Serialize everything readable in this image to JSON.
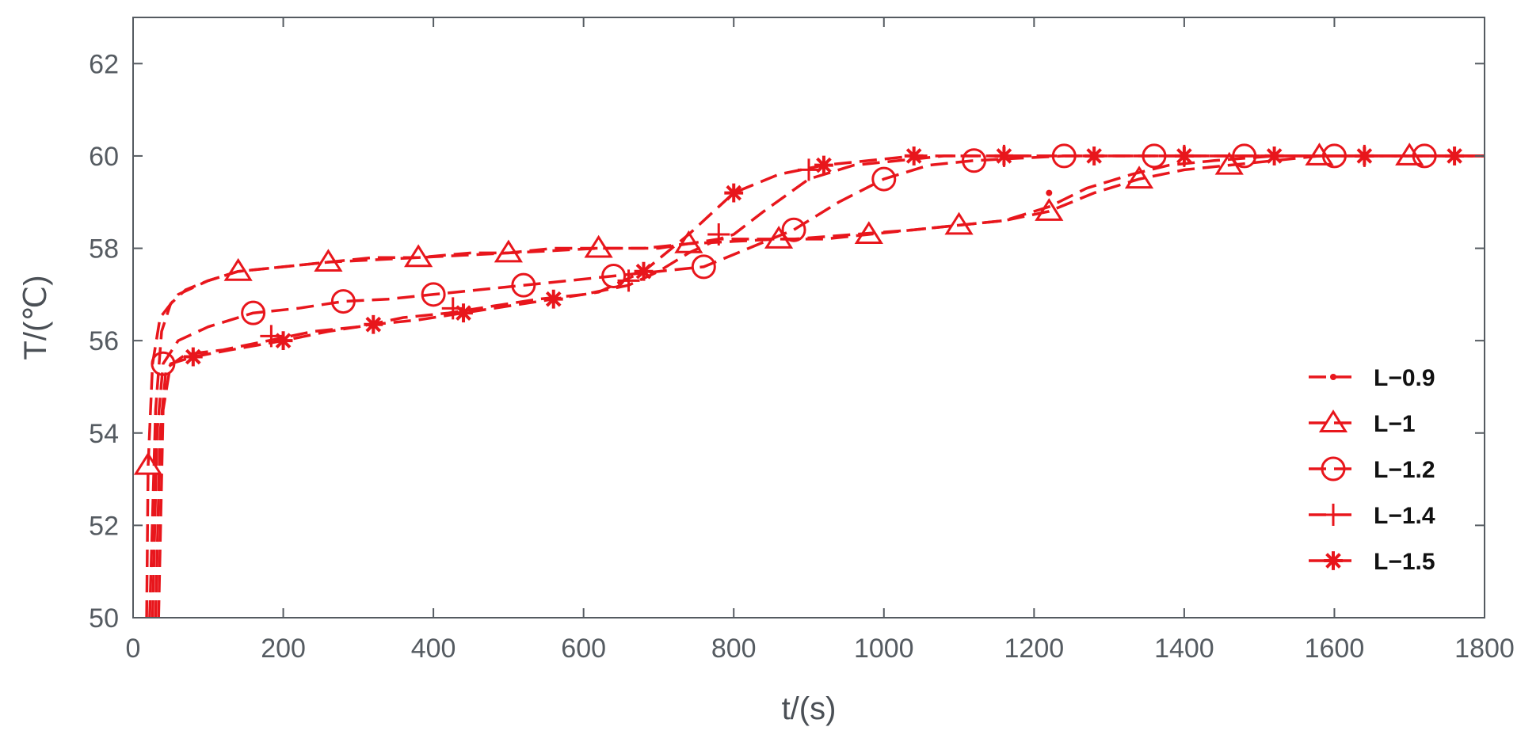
{
  "chart_data": {
    "type": "line",
    "title": "",
    "xlabel": "t/(s)",
    "ylabel": "T/(℃)",
    "xlim": [
      0,
      1800
    ],
    "ylim": [
      50,
      63
    ],
    "xticks": [
      0,
      200,
      400,
      600,
      800,
      1000,
      1200,
      1400,
      1600,
      1800
    ],
    "yticks": [
      50,
      52,
      54,
      56,
      58,
      60,
      62
    ],
    "grid": false,
    "legend_position": "right",
    "line_color": "#e8161c",
    "line_style": "dashed",
    "series": [
      {
        "name": "L−0.9",
        "marker": "dot",
        "points": [
          [
            22,
            50
          ],
          [
            30,
            54.5
          ],
          [
            38,
            56.2
          ],
          [
            50,
            56.8
          ],
          [
            70,
            57.1
          ],
          [
            100,
            57.3
          ],
          [
            140,
            57.5
          ],
          [
            200,
            57.6
          ],
          [
            260,
            57.7
          ],
          [
            320,
            57.8
          ],
          [
            380,
            57.8
          ],
          [
            450,
            57.9
          ],
          [
            500,
            57.9
          ],
          [
            560,
            58
          ],
          [
            620,
            58
          ],
          [
            700,
            58
          ],
          [
            740,
            58.1
          ],
          [
            780,
            58.2
          ],
          [
            820,
            58.2
          ],
          [
            880,
            58.2
          ],
          [
            960,
            58.3
          ],
          [
            1040,
            58.4
          ],
          [
            1100,
            58.5
          ],
          [
            1160,
            58.6
          ],
          [
            1220,
            58.9
          ],
          [
            1270,
            59.3
          ],
          [
            1330,
            59.6
          ],
          [
            1380,
            59.8
          ],
          [
            1440,
            59.9
          ],
          [
            1520,
            60
          ],
          [
            1600,
            60
          ],
          [
            1680,
            60
          ],
          [
            1760,
            60
          ],
          [
            1800,
            60
          ]
        ],
        "marker_points": [
          [
            1220,
            59.2
          ]
        ]
      },
      {
        "name": "L−1",
        "marker": "triangle",
        "points": [
          [
            18,
            50
          ],
          [
            20,
            53.3
          ],
          [
            26,
            55.5
          ],
          [
            36,
            56.5
          ],
          [
            60,
            57
          ],
          [
            100,
            57.3
          ],
          [
            140,
            57.5
          ],
          [
            200,
            57.6
          ],
          [
            260,
            57.7
          ],
          [
            320,
            57.75
          ],
          [
            380,
            57.8
          ],
          [
            440,
            57.85
          ],
          [
            500,
            57.9
          ],
          [
            560,
            57.95
          ],
          [
            620,
            58
          ],
          [
            680,
            58
          ],
          [
            740,
            58.1
          ],
          [
            800,
            58.15
          ],
          [
            860,
            58.2
          ],
          [
            920,
            58.2
          ],
          [
            980,
            58.3
          ],
          [
            1040,
            58.4
          ],
          [
            1100,
            58.5
          ],
          [
            1160,
            58.6
          ],
          [
            1220,
            58.8
          ],
          [
            1280,
            59.2
          ],
          [
            1340,
            59.5
          ],
          [
            1400,
            59.7
          ],
          [
            1460,
            59.8
          ],
          [
            1520,
            59.9
          ],
          [
            1580,
            60
          ],
          [
            1640,
            60
          ],
          [
            1700,
            60
          ],
          [
            1760,
            60
          ],
          [
            1800,
            60
          ]
        ],
        "marker_points": [
          [
            20,
            53.3
          ],
          [
            140,
            57.5
          ],
          [
            260,
            57.7
          ],
          [
            380,
            57.8
          ],
          [
            500,
            57.9
          ],
          [
            620,
            58
          ],
          [
            740,
            58.1
          ],
          [
            860,
            58.2
          ],
          [
            980,
            58.3
          ],
          [
            1100,
            58.5
          ],
          [
            1220,
            58.8
          ],
          [
            1340,
            59.5
          ],
          [
            1460,
            59.8
          ],
          [
            1580,
            60
          ],
          [
            1700,
            60
          ]
        ]
      },
      {
        "name": "L−1.2",
        "marker": "circle",
        "points": [
          [
            26,
            50
          ],
          [
            32,
            54
          ],
          [
            40,
            55.5
          ],
          [
            60,
            56
          ],
          [
            100,
            56.3
          ],
          [
            160,
            56.6
          ],
          [
            220,
            56.7
          ],
          [
            280,
            56.85
          ],
          [
            340,
            56.9
          ],
          [
            400,
            57
          ],
          [
            460,
            57.1
          ],
          [
            520,
            57.2
          ],
          [
            580,
            57.3
          ],
          [
            640,
            57.4
          ],
          [
            700,
            57.5
          ],
          [
            760,
            57.6
          ],
          [
            820,
            58
          ],
          [
            880,
            58.4
          ],
          [
            940,
            59
          ],
          [
            1000,
            59.5
          ],
          [
            1060,
            59.8
          ],
          [
            1120,
            59.9
          ],
          [
            1180,
            59.95
          ],
          [
            1240,
            60
          ],
          [
            1300,
            60
          ],
          [
            1360,
            60
          ],
          [
            1420,
            60
          ],
          [
            1480,
            60
          ],
          [
            1540,
            60
          ],
          [
            1600,
            60
          ],
          [
            1660,
            60
          ],
          [
            1720,
            60
          ],
          [
            1800,
            60
          ]
        ],
        "marker_points": [
          [
            40,
            55.5
          ],
          [
            160,
            56.6
          ],
          [
            280,
            56.85
          ],
          [
            400,
            57
          ],
          [
            520,
            57.2
          ],
          [
            640,
            57.4
          ],
          [
            760,
            57.6
          ],
          [
            880,
            58.4
          ],
          [
            1000,
            59.5
          ],
          [
            1120,
            59.9
          ],
          [
            1240,
            60
          ],
          [
            1360,
            60
          ],
          [
            1480,
            60
          ],
          [
            1600,
            60
          ],
          [
            1720,
            60
          ]
        ]
      },
      {
        "name": "L−1.4",
        "marker": "plus",
        "points": [
          [
            30,
            50
          ],
          [
            36,
            54
          ],
          [
            44,
            55.4
          ],
          [
            70,
            55.7
          ],
          [
            120,
            55.8
          ],
          [
            180,
            56
          ],
          [
            240,
            56.2
          ],
          [
            300,
            56.3
          ],
          [
            360,
            56.5
          ],
          [
            420,
            56.6
          ],
          [
            480,
            56.75
          ],
          [
            540,
            56.9
          ],
          [
            600,
            57
          ],
          [
            660,
            57.2
          ],
          [
            700,
            57.5
          ],
          [
            740,
            57.9
          ],
          [
            780,
            58.2
          ],
          [
            800,
            58.3
          ],
          [
            840,
            58.8
          ],
          [
            900,
            59.5
          ],
          [
            960,
            59.8
          ],
          [
            1020,
            59.9
          ],
          [
            1080,
            60
          ],
          [
            1160,
            60
          ],
          [
            1220,
            60
          ],
          [
            1280,
            60
          ],
          [
            1340,
            60
          ],
          [
            1400,
            60
          ],
          [
            1460,
            60
          ],
          [
            1520,
            60
          ],
          [
            1580,
            60
          ],
          [
            1640,
            60
          ],
          [
            1700,
            60
          ],
          [
            1760,
            60
          ],
          [
            1800,
            60
          ]
        ],
        "marker_points": [
          [
            184,
            56.1
          ],
          [
            426,
            56.7
          ],
          [
            660,
            57.3
          ],
          [
            780,
            58.3
          ],
          [
            900,
            59.7
          ],
          [
            1160,
            60
          ],
          [
            1400,
            60
          ],
          [
            1640,
            60
          ]
        ]
      },
      {
        "name": "L−1.5",
        "marker": "star",
        "points": [
          [
            34,
            50
          ],
          [
            40,
            54.5
          ],
          [
            50,
            55.5
          ],
          [
            80,
            55.65
          ],
          [
            130,
            55.8
          ],
          [
            200,
            56
          ],
          [
            260,
            56.2
          ],
          [
            320,
            56.35
          ],
          [
            380,
            56.45
          ],
          [
            440,
            56.6
          ],
          [
            500,
            56.75
          ],
          [
            560,
            56.9
          ],
          [
            620,
            57.05
          ],
          [
            680,
            57.5
          ],
          [
            740,
            58.3
          ],
          [
            800,
            59.2
          ],
          [
            860,
            59.6
          ],
          [
            920,
            59.8
          ],
          [
            980,
            59.9
          ],
          [
            1040,
            60
          ],
          [
            1100,
            60
          ],
          [
            1160,
            60
          ],
          [
            1220,
            60
          ],
          [
            1280,
            60
          ],
          [
            1340,
            60
          ],
          [
            1400,
            60
          ],
          [
            1460,
            60
          ],
          [
            1520,
            60
          ],
          [
            1580,
            60
          ],
          [
            1640,
            60
          ],
          [
            1700,
            60
          ],
          [
            1760,
            60
          ],
          [
            1800,
            60
          ]
        ],
        "marker_points": [
          [
            80,
            55.65
          ],
          [
            200,
            56
          ],
          [
            320,
            56.35
          ],
          [
            440,
            56.6
          ],
          [
            560,
            56.9
          ],
          [
            680,
            57.5
          ],
          [
            800,
            59.2
          ],
          [
            920,
            59.8
          ],
          [
            1040,
            60
          ],
          [
            1160,
            60
          ],
          [
            1280,
            60
          ],
          [
            1400,
            60
          ],
          [
            1520,
            60
          ],
          [
            1640,
            60
          ],
          [
            1760,
            60
          ]
        ]
      }
    ]
  }
}
